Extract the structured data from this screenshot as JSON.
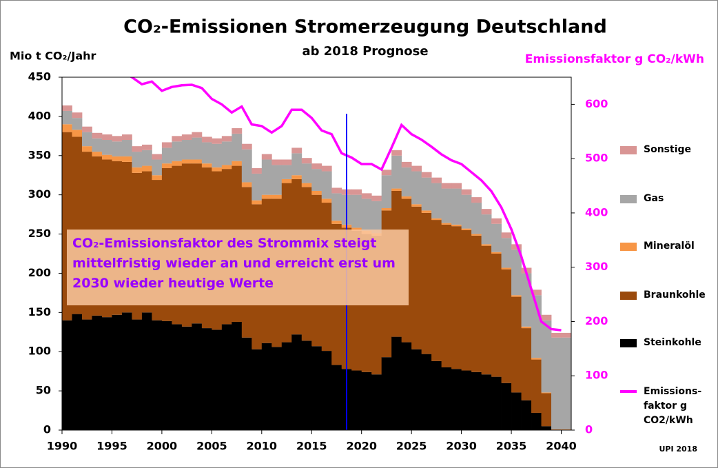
{
  "chart_data": {
    "type": "bar",
    "stacked": true,
    "title": "CO₂-Emissionen Stromerzeugung Deutschland",
    "subtitle": "ab 2018 Prognose",
    "y_label": "Mio t CO₂/Jahr",
    "y2_label": "Emissionsfaktor  g CO₂/kWh",
    "annotation": "CO₂-Emissionsfaktor des Strommix steigt mittelfristig wieder an und erreicht erst um 2030 wieder heutige Werte",
    "source": "UPI  2018",
    "prognosis_marker": 2018.5,
    "x": [
      1990,
      1991,
      1992,
      1993,
      1994,
      1995,
      1996,
      1997,
      1998,
      1999,
      2000,
      2001,
      2002,
      2003,
      2004,
      2005,
      2006,
      2007,
      2008,
      2009,
      2010,
      2011,
      2012,
      2013,
      2014,
      2015,
      2016,
      2017,
      2018,
      2019,
      2020,
      2021,
      2022,
      2023,
      2024,
      2025,
      2026,
      2027,
      2028,
      2029,
      2030,
      2031,
      2032,
      2033,
      2034,
      2035,
      2036,
      2037,
      2038,
      2039,
      2040
    ],
    "xlim": [
      1990,
      2041
    ],
    "xticks": [
      1990,
      1995,
      2000,
      2005,
      2010,
      2015,
      2020,
      2025,
      2030,
      2035,
      2040
    ],
    "ylim": [
      0,
      450
    ],
    "yticks": [
      0,
      50,
      100,
      150,
      200,
      250,
      300,
      350,
      400,
      450
    ],
    "y2lim": [
      0,
      650
    ],
    "y2ticks": [
      0,
      100,
      200,
      300,
      400,
      500,
      600
    ],
    "series": [
      {
        "name": "Steinkohle",
        "color": "#000000",
        "values": [
          140,
          148,
          141,
          146,
          144,
          147,
          150,
          141,
          150,
          140,
          139,
          135,
          132,
          136,
          130,
          128,
          135,
          138,
          118,
          103,
          111,
          106,
          112,
          122,
          114,
          107,
          101,
          83,
          78,
          76,
          74,
          71,
          93,
          119,
          112,
          103,
          97,
          88,
          80,
          78,
          76,
          74,
          71,
          68,
          60,
          48,
          38,
          22,
          5,
          0,
          0
        ]
      },
      {
        "name": "Braunkohle",
        "color": "#9a4a0c",
        "values": [
          240,
          226,
          214,
          203,
          201,
          196,
          192,
          187,
          180,
          179,
          195,
          202,
          208,
          204,
          205,
          202,
          198,
          199,
          192,
          185,
          184,
          189,
          203,
          198,
          196,
          193,
          189,
          180,
          180,
          178,
          176,
          177,
          187,
          186,
          183,
          182,
          180,
          180,
          182,
          182,
          179,
          174,
          164,
          157,
          145,
          122,
          92,
          68,
          42,
          0,
          0
        ]
      },
      {
        "name": "Mineralöl",
        "color": "#f79646",
        "values": [
          10,
          9,
          7,
          6,
          6,
          6,
          7,
          7,
          7,
          6,
          6,
          6,
          5,
          5,
          5,
          5,
          5,
          6,
          6,
          5,
          5,
          5,
          5,
          5,
          5,
          5,
          5,
          4,
          4,
          4,
          4,
          3,
          3,
          3,
          3,
          3,
          3,
          2,
          2,
          2,
          2,
          2,
          2,
          2,
          2,
          2,
          2,
          2,
          1,
          1,
          1
        ]
      },
      {
        "name": "Gas",
        "color": "#a6a6a6",
        "values": [
          17,
          15,
          18,
          17,
          19,
          19,
          21,
          20,
          20,
          20,
          20,
          25,
          25,
          28,
          27,
          30,
          30,
          35,
          42,
          34,
          45,
          38,
          18,
          28,
          25,
          28,
          35,
          35,
          38,
          42,
          41,
          41,
          42,
          42,
          37,
          42,
          42,
          45,
          44,
          46,
          43,
          40,
          38,
          36,
          38,
          58,
          68,
          80,
          92,
          117,
          117
        ]
      },
      {
        "name": "Sonstige",
        "color": "#d99594",
        "values": [
          7,
          7,
          7,
          7,
          7,
          7,
          7,
          7,
          7,
          7,
          7,
          7,
          7,
          7,
          7,
          7,
          7,
          7,
          7,
          7,
          7,
          7,
          7,
          7,
          7,
          7,
          7,
          7,
          7,
          7,
          7,
          7,
          7,
          7,
          7,
          7,
          7,
          7,
          7,
          7,
          7,
          7,
          7,
          7,
          7,
          7,
          7,
          7,
          7,
          6,
          6
        ]
      },
      {
        "name": "Emissions-faktor g CO2/kWh",
        "type": "line",
        "axis": "y2",
        "color": "#ff00ff",
        "values": [
          null,
          null,
          null,
          null,
          null,
          null,
          660,
          650,
          637,
          642,
          625,
          632,
          635,
          636,
          630,
          610,
          600,
          585,
          596,
          563,
          560,
          548,
          560,
          590,
          590,
          575,
          552,
          545,
          510,
          502,
          490,
          490,
          480,
          520,
          562,
          545,
          535,
          522,
          508,
          497,
          490,
          475,
          460,
          440,
          410,
          370,
          320,
          260,
          200,
          186,
          184
        ]
      }
    ]
  }
}
